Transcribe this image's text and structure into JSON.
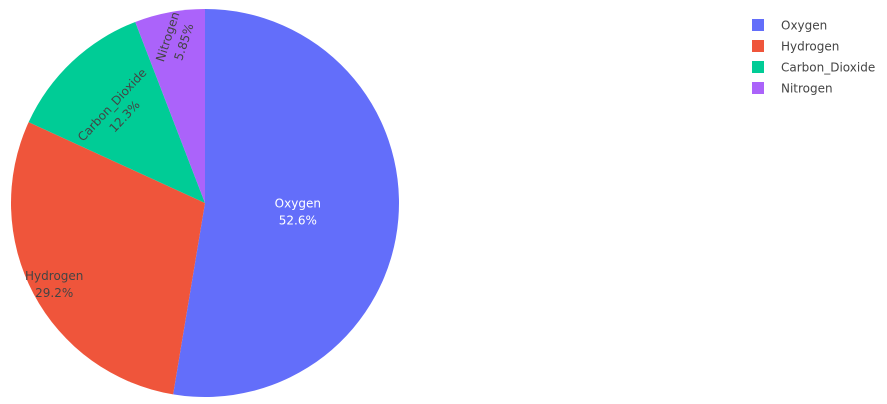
{
  "chart_data": {
    "type": "pie",
    "title": "",
    "categories": [
      "Oxygen",
      "Hydrogen",
      "Carbon_Dioxide",
      "Nitrogen"
    ],
    "values": [
      52.6,
      29.2,
      12.3,
      5.85
    ],
    "percent_labels": [
      "52.6%",
      "29.2%",
      "12.3%",
      "5.85%"
    ],
    "colors": [
      "#636efa",
      "#ef553b",
      "#00cc96",
      "#ab63fa"
    ],
    "legend": {
      "placement": "top-right",
      "entries": [
        "Oxygen",
        "Hydrogen",
        "Carbon_Dioxide",
        "Nitrogen"
      ]
    },
    "direction": "clockwise",
    "start": "top"
  }
}
